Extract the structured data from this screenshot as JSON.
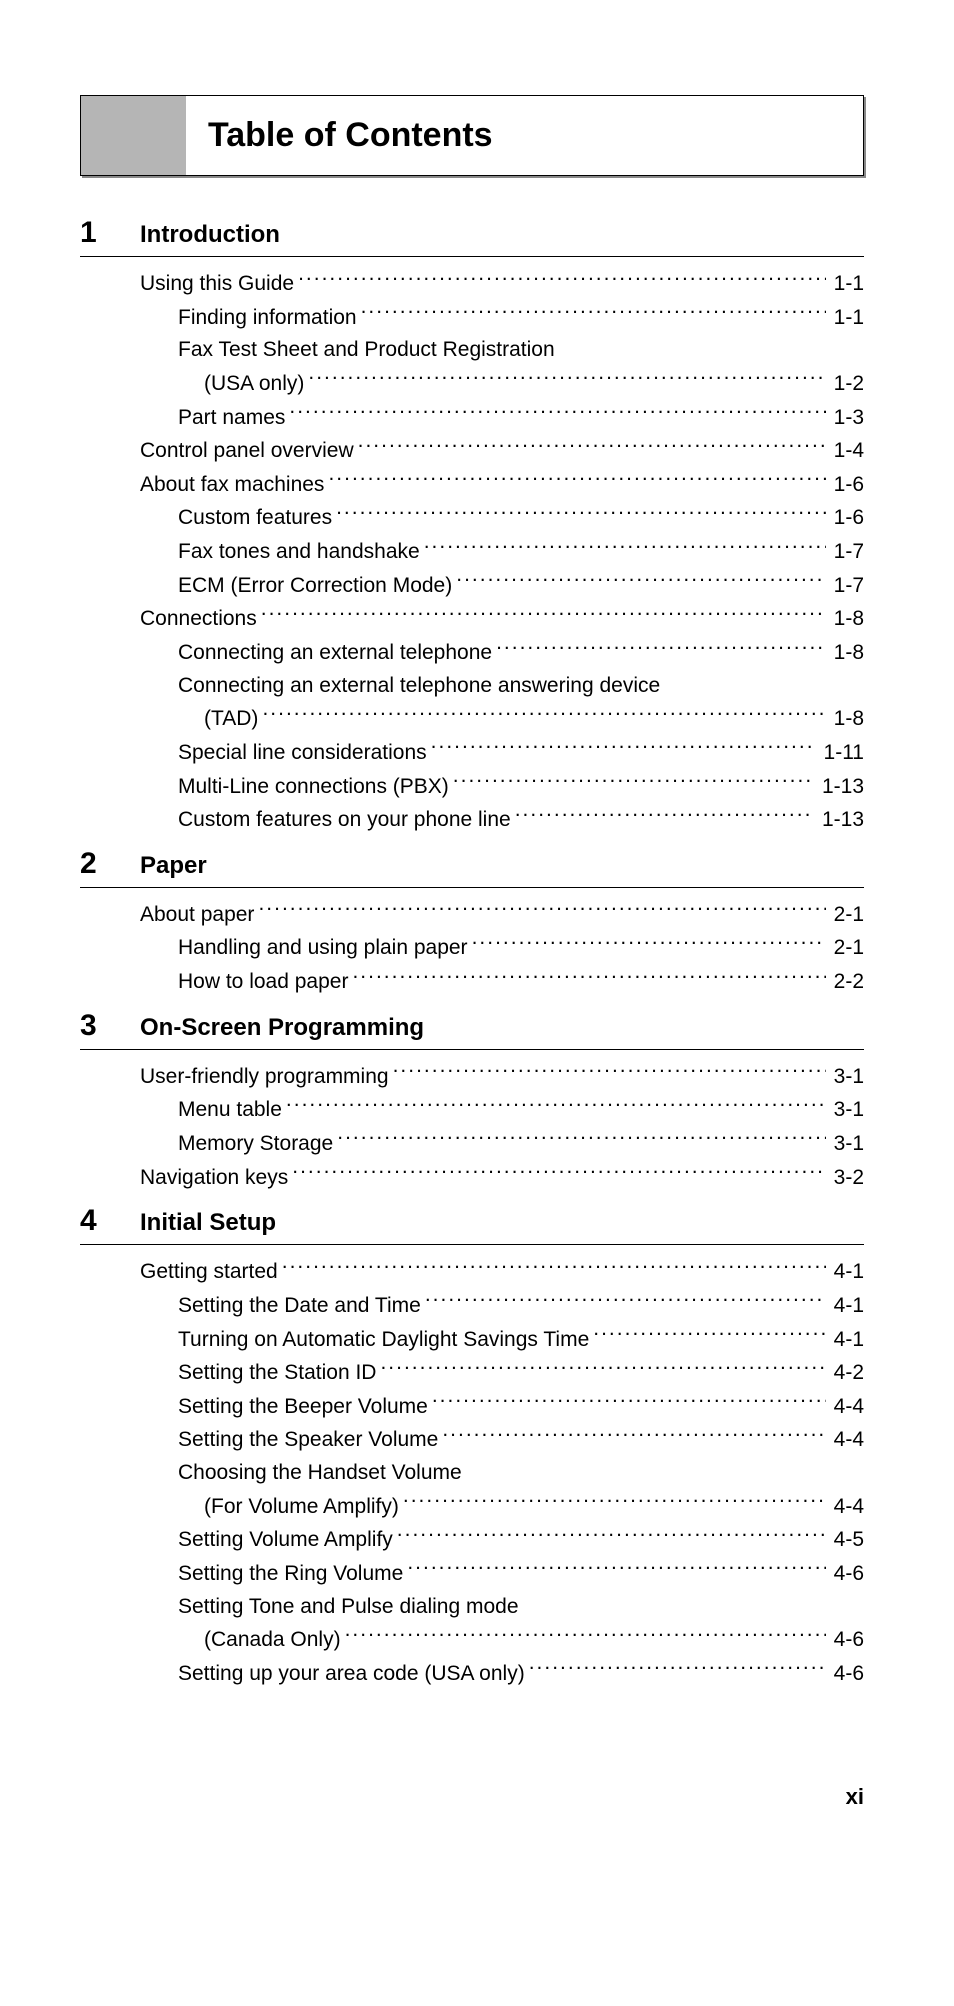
{
  "title": "Table of Contents",
  "page_number": "xi",
  "chapters": [
    {
      "num": "1",
      "title": "Introduction",
      "entries": [
        {
          "indent": 0,
          "label": "Using this Guide",
          "page": "1-1"
        },
        {
          "indent": 1,
          "label": "Finding information",
          "page": "1-1"
        },
        {
          "indent": 1,
          "label": "Fax Test Sheet and Product Registration",
          "cont": "(USA only)",
          "page": "1-2"
        },
        {
          "indent": 1,
          "label": "Part names",
          "page": "1-3"
        },
        {
          "indent": 0,
          "label": "Control panel overview",
          "page": "1-4"
        },
        {
          "indent": 0,
          "label": "About fax machines",
          "page": "1-6"
        },
        {
          "indent": 1,
          "label": "Custom features",
          "page": "1-6"
        },
        {
          "indent": 1,
          "label": "Fax tones and handshake",
          "page": "1-7"
        },
        {
          "indent": 1,
          "label": "ECM (Error Correction Mode)",
          "page": "1-7"
        },
        {
          "indent": 0,
          "label": "Connections",
          "page": "1-8"
        },
        {
          "indent": 1,
          "label": "Connecting an external telephone",
          "page": "1-8"
        },
        {
          "indent": 1,
          "label": "Connecting an external telephone answering device",
          "cont": "(TAD)",
          "page": "1-8"
        },
        {
          "indent": 1,
          "label": "Special line considerations",
          "page": "1-11"
        },
        {
          "indent": 1,
          "label": "Multi-Line connections (PBX)",
          "page": "1-13"
        },
        {
          "indent": 1,
          "label": "Custom features on your phone line",
          "page": "1-13"
        }
      ]
    },
    {
      "num": "2",
      "title": "Paper",
      "entries": [
        {
          "indent": 0,
          "label": "About paper",
          "page": "2-1"
        },
        {
          "indent": 1,
          "label": "Handling and using plain paper",
          "page": "2-1"
        },
        {
          "indent": 1,
          "label": "How to load paper",
          "page": "2-2"
        }
      ]
    },
    {
      "num": "3",
      "title": "On-Screen Programming",
      "entries": [
        {
          "indent": 0,
          "label": "User-friendly programming",
          "page": "3-1"
        },
        {
          "indent": 1,
          "label": "Menu table",
          "page": "3-1"
        },
        {
          "indent": 1,
          "label": "Memory Storage",
          "page": "3-1"
        },
        {
          "indent": 0,
          "label": "Navigation keys",
          "page": "3-2"
        }
      ]
    },
    {
      "num": "4",
      "title": "Initial Setup",
      "entries": [
        {
          "indent": 0,
          "label": "Getting started",
          "page": "4-1"
        },
        {
          "indent": 1,
          "label": "Setting the Date and Time",
          "page": "4-1"
        },
        {
          "indent": 1,
          "label": "Turning on Automatic Daylight Savings Time",
          "page": "4-1"
        },
        {
          "indent": 1,
          "label": "Setting the Station ID",
          "page": "4-2"
        },
        {
          "indent": 1,
          "label": "Setting the Beeper Volume",
          "page": "4-4"
        },
        {
          "indent": 1,
          "label": "Setting the Speaker Volume",
          "page": "4-4"
        },
        {
          "indent": 1,
          "label": "Choosing the Handset Volume",
          "cont": "(For Volume Amplify)",
          "page": "4-4"
        },
        {
          "indent": 1,
          "label": "Setting Volume Amplify",
          "page": "4-5"
        },
        {
          "indent": 1,
          "label": "Setting the Ring Volume",
          "page": "4-6"
        },
        {
          "indent": 1,
          "label": "Setting Tone and Pulse dialing mode",
          "cont": "(Canada Only)",
          "page": "4-6"
        },
        {
          "indent": 1,
          "label": "Setting up your area code (USA only)",
          "page": "4-6"
        }
      ]
    }
  ]
}
